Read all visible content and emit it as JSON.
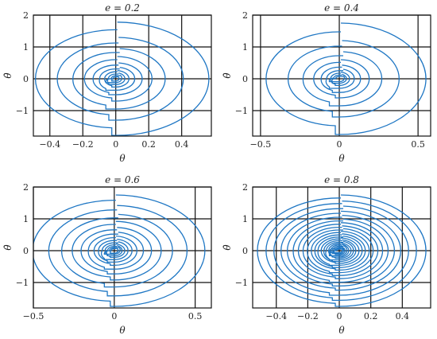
{
  "chart_data": [
    {
      "type": "line",
      "title": "e = 0.2",
      "xlabel": "θ",
      "ylabel": "θ̇",
      "xlim": [
        -0.5,
        0.58
      ],
      "ylim": [
        -1.8,
        2
      ],
      "xticks": [
        -0.4,
        -0.2,
        0,
        0.2,
        0.4
      ],
      "xtick_labels": [
        "−0.4",
        "−0.2",
        "0",
        "0.2",
        "0.4"
      ],
      "yticks": [
        -1,
        0,
        1,
        2
      ],
      "ytick_labels": [
        "−1",
        "0",
        "1",
        "2"
      ],
      "grid": true,
      "color": "#1f77c4",
      "orbits": [
        {
          "theta_max": 0.565,
          "thetadot_max": 1.78
        },
        {
          "theta_max": 0.41,
          "thetadot_max": 1.3
        },
        {
          "theta_max": 0.3,
          "thetadot_max": 0.95
        },
        {
          "theta_max": 0.22,
          "thetadot_max": 0.7
        },
        {
          "theta_max": 0.16,
          "thetadot_max": 0.5
        },
        {
          "theta_max": 0.115,
          "thetadot_max": 0.36
        },
        {
          "theta_max": 0.08,
          "thetadot_max": 0.26
        },
        {
          "theta_max": 0.055,
          "thetadot_max": 0.18
        },
        {
          "theta_max": 0.035,
          "thetadot_max": 0.12
        },
        {
          "theta_max": 0.02,
          "thetadot_max": 0.07
        }
      ]
    },
    {
      "type": "line",
      "title": "e = 0.4",
      "xlabel": "θ",
      "ylabel": "θ̇",
      "xlim": [
        -0.55,
        0.58
      ],
      "ylim": [
        -1.8,
        2
      ],
      "xticks": [
        -0.5,
        0,
        0.5
      ],
      "xtick_labels": [
        "−0.5",
        "0",
        "0.5"
      ],
      "yticks": [
        -1,
        0,
        1,
        2
      ],
      "ytick_labels": [
        "−1",
        "0",
        "1",
        "2"
      ],
      "grid": true,
      "color": "#1f77c4",
      "orbits": [
        {
          "theta_max": 0.55,
          "thetadot_max": 1.75
        },
        {
          "theta_max": 0.38,
          "thetadot_max": 1.2
        },
        {
          "theta_max": 0.27,
          "thetadot_max": 0.85
        },
        {
          "theta_max": 0.19,
          "thetadot_max": 0.6
        },
        {
          "theta_max": 0.135,
          "thetadot_max": 0.43
        },
        {
          "theta_max": 0.095,
          "thetadot_max": 0.3
        },
        {
          "theta_max": 0.065,
          "thetadot_max": 0.21
        },
        {
          "theta_max": 0.045,
          "thetadot_max": 0.14
        },
        {
          "theta_max": 0.03,
          "thetadot_max": 0.09
        }
      ]
    },
    {
      "type": "line",
      "title": "e = 0.6",
      "xlabel": "θ",
      "ylabel": "θ̇",
      "xlim": [
        -0.5,
        0.6
      ],
      "ylim": [
        -1.8,
        2
      ],
      "xticks": [
        -0.5,
        0,
        0.5
      ],
      "xtick_labels": [
        "−0.5",
        "0",
        "0.5"
      ],
      "yticks": [
        -1,
        0,
        1,
        2
      ],
      "ytick_labels": [
        "−1",
        "0",
        "1",
        "2"
      ],
      "grid": true,
      "color": "#1f77c4",
      "orbits": [
        {
          "theta_max": 0.56,
          "thetadot_max": 1.75
        },
        {
          "theta_max": 0.45,
          "thetadot_max": 1.42
        },
        {
          "theta_max": 0.36,
          "thetadot_max": 1.14
        },
        {
          "theta_max": 0.29,
          "thetadot_max": 0.92
        },
        {
          "theta_max": 0.23,
          "thetadot_max": 0.73
        },
        {
          "theta_max": 0.18,
          "thetadot_max": 0.58
        },
        {
          "theta_max": 0.14,
          "thetadot_max": 0.46
        },
        {
          "theta_max": 0.11,
          "thetadot_max": 0.36
        },
        {
          "theta_max": 0.085,
          "thetadot_max": 0.28
        },
        {
          "theta_max": 0.065,
          "thetadot_max": 0.21
        },
        {
          "theta_max": 0.048,
          "thetadot_max": 0.16
        },
        {
          "theta_max": 0.035,
          "thetadot_max": 0.11
        },
        {
          "theta_max": 0.024,
          "thetadot_max": 0.08
        }
      ]
    },
    {
      "type": "line",
      "title": "e = 0.8",
      "xlabel": "θ",
      "ylabel": "θ̇",
      "xlim": [
        -0.55,
        0.58
      ],
      "ylim": [
        -1.8,
        2
      ],
      "xticks": [
        -0.4,
        -0.2,
        0,
        0.2,
        0.4
      ],
      "xtick_labels": [
        "−0.4",
        "−0.2",
        "0",
        "0.2",
        "0.4"
      ],
      "yticks": [
        -1,
        0,
        1,
        2
      ],
      "ytick_labels": [
        "−1",
        "0",
        "1",
        "2"
      ],
      "grid": true,
      "color": "#1f77c4",
      "orbits": [
        {
          "theta_max": 0.55,
          "thetadot_max": 1.75
        },
        {
          "theta_max": 0.49,
          "thetadot_max": 1.56
        },
        {
          "theta_max": 0.44,
          "thetadot_max": 1.4
        },
        {
          "theta_max": 0.39,
          "thetadot_max": 1.24
        },
        {
          "theta_max": 0.35,
          "thetadot_max": 1.11
        },
        {
          "theta_max": 0.31,
          "thetadot_max": 0.99
        },
        {
          "theta_max": 0.275,
          "thetadot_max": 0.88
        },
        {
          "theta_max": 0.245,
          "thetadot_max": 0.78
        },
        {
          "theta_max": 0.215,
          "thetadot_max": 0.69
        },
        {
          "theta_max": 0.19,
          "thetadot_max": 0.61
        },
        {
          "theta_max": 0.165,
          "thetadot_max": 0.53
        },
        {
          "theta_max": 0.145,
          "thetadot_max": 0.46
        },
        {
          "theta_max": 0.125,
          "thetadot_max": 0.4
        },
        {
          "theta_max": 0.105,
          "thetadot_max": 0.34
        },
        {
          "theta_max": 0.09,
          "thetadot_max": 0.29
        },
        {
          "theta_max": 0.075,
          "thetadot_max": 0.24
        },
        {
          "theta_max": 0.06,
          "thetadot_max": 0.2
        },
        {
          "theta_max": 0.048,
          "thetadot_max": 0.16
        },
        {
          "theta_max": 0.037,
          "thetadot_max": 0.12
        },
        {
          "theta_max": 0.027,
          "thetadot_max": 0.09
        },
        {
          "theta_max": 0.018,
          "thetadot_max": 0.06
        }
      ]
    }
  ]
}
